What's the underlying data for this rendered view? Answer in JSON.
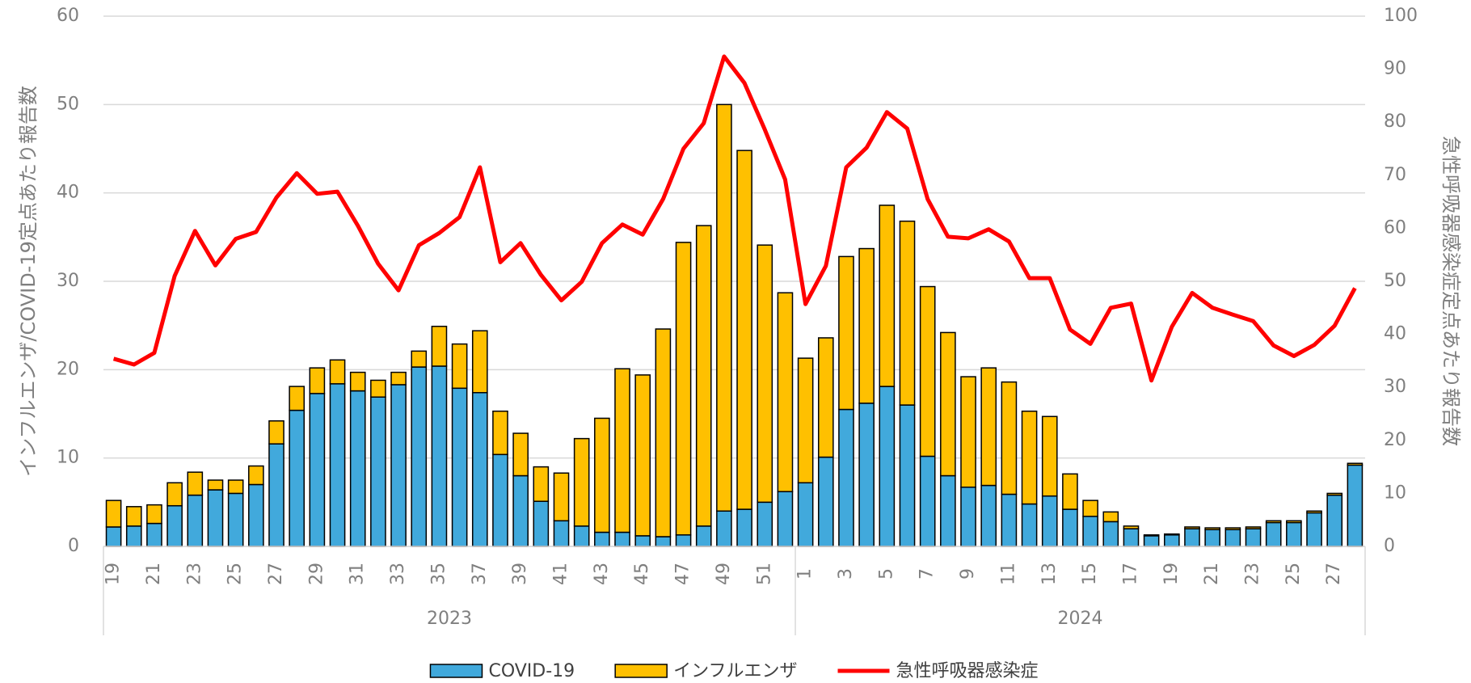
{
  "chart_data": {
    "type": "stacked-bar-line",
    "y_title": "インフルエンザ/COVID-19定点あたり報告数",
    "y2_title": "急性呼吸器感染症定点あたり報告数",
    "groups": [
      {
        "name": "2023",
        "categories": [
          "19",
          null,
          "21",
          null,
          "23",
          null,
          "25",
          null,
          "27",
          null,
          "29",
          null,
          "31",
          null,
          "33",
          null,
          "35",
          null,
          "37",
          null,
          "39",
          null,
          "41",
          null,
          "43",
          null,
          "45",
          null,
          "47",
          null,
          "49",
          null,
          "51",
          null
        ]
      },
      {
        "name": "2024",
        "categories": [
          "1",
          null,
          "3",
          null,
          "5",
          null,
          "7",
          null,
          "9",
          null,
          "11",
          null,
          "13",
          null,
          "15",
          null,
          "17",
          null,
          "19",
          null,
          "21",
          null,
          "23",
          null,
          "25",
          null,
          "27",
          null
        ]
      }
    ],
    "series": [
      {
        "name": "COVID-19",
        "type": "bar",
        "color": "#41a9dc",
        "values": [
          2.2,
          2.3,
          2.6,
          4.6,
          5.8,
          6.4,
          6.0,
          7.0,
          11.6,
          15.4,
          17.3,
          18.4,
          17.6,
          16.9,
          18.3,
          20.3,
          20.4,
          17.9,
          17.4,
          10.4,
          8.0,
          5.1,
          2.9,
          2.3,
          1.6,
          1.6,
          1.2,
          1.1,
          1.3,
          2.3,
          4.0,
          4.2,
          5.0,
          6.2,
          7.2,
          10.1,
          15.5,
          16.2,
          18.1,
          16.0,
          10.2,
          8.0,
          6.7,
          6.9,
          5.9,
          4.8,
          5.7,
          4.2,
          3.4,
          2.8,
          2.0,
          1.2,
          1.3,
          2.0,
          1.9,
          1.9,
          2.0,
          2.7,
          2.7,
          3.8,
          5.8,
          9.2
        ]
      },
      {
        "name": "インフルエンザ",
        "type": "bar",
        "color": "#ffc000",
        "values": [
          3.0,
          2.2,
          2.1,
          2.6,
          2.6,
          1.1,
          1.5,
          2.1,
          2.6,
          2.7,
          2.9,
          2.7,
          2.1,
          1.9,
          1.4,
          1.8,
          4.5,
          5.0,
          7.0,
          4.9,
          4.8,
          3.9,
          5.4,
          9.9,
          12.9,
          18.5,
          18.2,
          23.5,
          33.1,
          34.0,
          46.0,
          40.6,
          29.1,
          22.5,
          14.1,
          13.5,
          17.3,
          17.5,
          20.5,
          20.8,
          19.2,
          16.2,
          12.5,
          13.3,
          12.7,
          10.5,
          9.0,
          4.0,
          1.8,
          1.1,
          0.3,
          0.1,
          0.1,
          0.2,
          0.2,
          0.2,
          0.2,
          0.2,
          0.2,
          0.2,
          0.2,
          0.2
        ]
      },
      {
        "name": "急性呼吸器感染症",
        "type": "line",
        "axis": "y2",
        "color": "#ff0000",
        "values": [
          35.4,
          34.3,
          36.5,
          51.0,
          59.5,
          53.0,
          58.0,
          59.3,
          65.8,
          70.4,
          66.5,
          66.9,
          60.5,
          53.3,
          48.3,
          56.8,
          59.1,
          62.1,
          71.5,
          53.6,
          57.2,
          51.2,
          46.4,
          49.9,
          57.2,
          60.7,
          58.8,
          65.5,
          75.0,
          79.8,
          92.4,
          87.4,
          78.6,
          69.2,
          45.7,
          52.9,
          71.5,
          75.2,
          81.9,
          78.8,
          65.5,
          58.4,
          58.1,
          59.8,
          57.5,
          50.6,
          50.6,
          40.9,
          38.2,
          45.0,
          45.8,
          31.3,
          41.4,
          47.8,
          45.0,
          43.7,
          42.5,
          37.9,
          35.9,
          38.0,
          41.6,
          48.7
        ]
      }
    ],
    "ylim": [
      0,
      60
    ],
    "yticks": [
      0,
      10,
      20,
      30,
      40,
      50,
      60
    ],
    "y2lim": [
      0,
      100
    ],
    "y2ticks": [
      0,
      10,
      20,
      30,
      40,
      50,
      60,
      70,
      80,
      90,
      100
    ],
    "grid": true,
    "legend": "bottom"
  }
}
